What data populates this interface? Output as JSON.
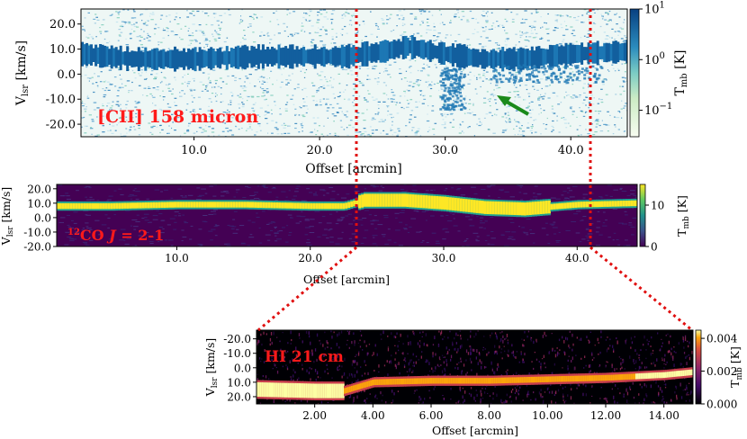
{
  "chart_data": [
    {
      "id": "cii",
      "type": "heatmap",
      "title": "[CII] 158 micron",
      "xlabel": "Offset [arcmin]",
      "ylabel": "V_lsr [km/s]",
      "xlim": [
        1.0,
        44.5
      ],
      "ylim": [
        -25.0,
        26.0
      ],
      "x_ticks": [
        10.0,
        20.0,
        30.0,
        40.0
      ],
      "x_tick_labels": [
        "10.0",
        "20.0",
        "30.0",
        "40.0"
      ],
      "y_ticks": [
        20.0,
        10.0,
        0.0,
        -10.0,
        -20.0
      ],
      "y_tick_labels": [
        "20.0",
        "10.0",
        "0.0",
        "-10.0",
        "-20.0"
      ],
      "colorbar": {
        "scale": "log",
        "cmap": "GnBu",
        "range": [
          0.03,
          10
        ],
        "ticks": [
          10,
          1,
          0.1
        ],
        "tick_labels": [
          "10^1",
          "10^0",
          "10^-1"
        ],
        "label": "T_mb [K]"
      },
      "emission_ridge": {
        "offset": [
          1,
          5,
          10,
          15,
          20,
          22,
          25,
          27,
          30,
          33,
          36,
          40,
          44.5
        ],
        "velocity": [
          8,
          6,
          6,
          7,
          7,
          7,
          9,
          11,
          8,
          6,
          6,
          8,
          9
        ]
      },
      "secondary_features": [
        {
          "offset_range": [
            29.5,
            31.5
          ],
          "velocity_range": [
            -14,
            3
          ]
        },
        {
          "offset_range": [
            33.5,
            42.5
          ],
          "velocity_range": [
            -3,
            4
          ]
        }
      ],
      "annotation": {
        "type": "arrow",
        "color": "#1a8a1a",
        "from": [
          37.5,
          -16.5
        ],
        "to": [
          34.3,
          -10.5
        ]
      }
    },
    {
      "id": "co",
      "type": "heatmap",
      "title": "12CO J = 2-1",
      "xlabel": "Offset [arcmin]",
      "ylabel": "V_lsr [km/s]",
      "xlim": [
        1.0,
        44.5
      ],
      "ylim": [
        -20.0,
        23.0
      ],
      "x_ticks": [
        10.0,
        20.0,
        30.0,
        40.0
      ],
      "x_tick_labels": [
        "10.0",
        "20.0",
        "30.0",
        "40.0"
      ],
      "y_ticks": [
        20.0,
        10.0,
        0.0,
        -10.0,
        -20.0
      ],
      "y_tick_labels": [
        "20.0",
        "10.0",
        "0.0",
        "-10.0",
        "-20.0"
      ],
      "colorbar": {
        "scale": "linear",
        "cmap": "viridis",
        "range": [
          0,
          15
        ],
        "ticks": [
          0,
          10
        ],
        "tick_labels": [
          "0",
          "10"
        ],
        "label": "T_mb [K]"
      },
      "emission_ridge": {
        "offset": [
          1,
          5,
          10,
          15,
          20,
          22.5,
          24,
          27,
          30,
          33,
          36,
          40,
          44.5
        ],
        "velocity": [
          8,
          8,
          9,
          9,
          8,
          8,
          12,
          12,
          10,
          7,
          6,
          9,
          10
        ]
      }
    },
    {
      "id": "hi",
      "type": "heatmap",
      "title": "HI 21 cm",
      "xlabel": "Offset [arcmin]",
      "ylabel": "V_lsr [km/s]",
      "xlim": [
        0.0,
        15.0
      ],
      "ylim": [
        25.0,
        -26.0
      ],
      "x_ticks": [
        2.0,
        4.0,
        6.0,
        8.0,
        10.0,
        12.0,
        14.0
      ],
      "x_tick_labels": [
        "2.00",
        "4.00",
        "6.00",
        "8.00",
        "10.00",
        "12.00",
        "14.00"
      ],
      "y_ticks": [
        -20.0,
        -10.0,
        0.0,
        10.0,
        20.0
      ],
      "y_tick_labels": [
        "-20.0",
        "-10.0",
        "0.0",
        "10.0",
        "20.0"
      ],
      "colorbar": {
        "scale": "linear",
        "cmap": "inferno",
        "range": [
          0,
          0.0045
        ],
        "ticks": [
          0.004,
          0.002,
          0.0
        ],
        "tick_labels": [
          "0.004",
          "0.002",
          "0.000"
        ],
        "label": "T_mb [K]"
      },
      "emission_ridge": {
        "offset": [
          0,
          2,
          3,
          4,
          6,
          8,
          10,
          12,
          14,
          15
        ],
        "velocity": [
          15,
          16,
          16,
          10,
          9,
          9,
          8,
          7,
          5,
          3
        ]
      }
    }
  ]
}
